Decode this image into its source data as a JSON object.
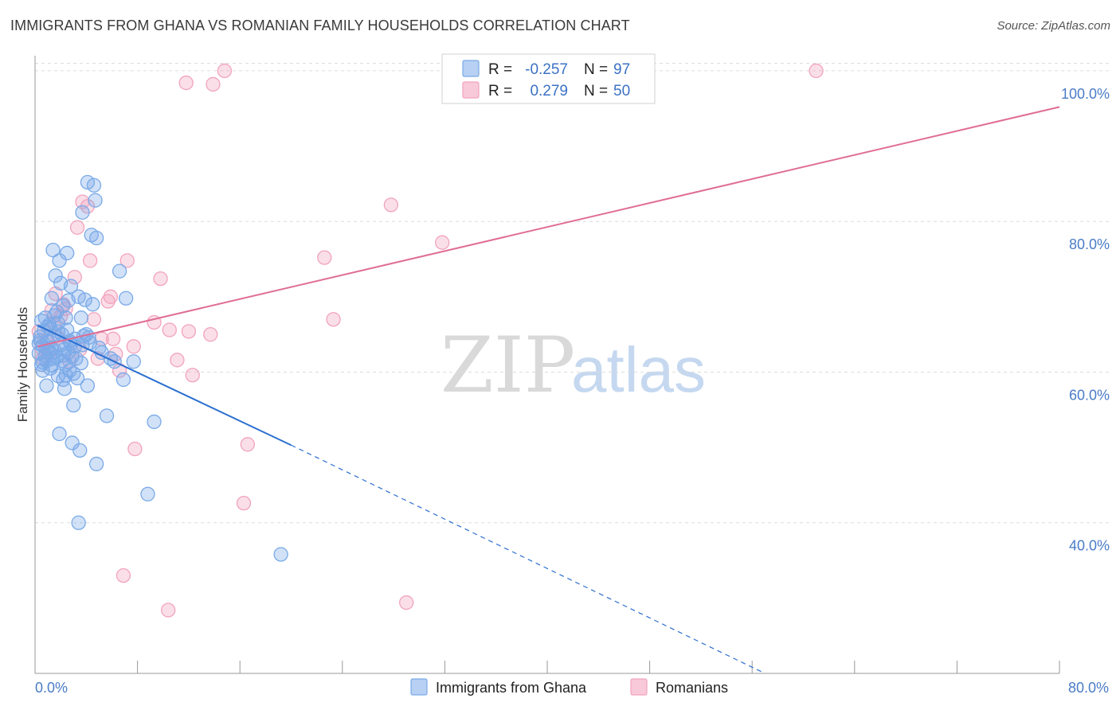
{
  "title": "IMMIGRANTS FROM GHANA VS ROMANIAN FAMILY HOUSEHOLDS CORRELATION CHART",
  "source": "Source: ZipAtlas.com",
  "watermark": {
    "zip": "ZIP",
    "atlas": "atlas"
  },
  "colors": {
    "blue": "#7aaae8",
    "blue_line": "#2b6fd0",
    "pink": "#f2a3bd",
    "pink_line": "#e06d95",
    "tick": "#4a7cc6",
    "grid": "#dcdcdc"
  },
  "legend": {
    "rows": [
      {
        "r_label": "R =",
        "r_value": "-0.257",
        "n_label": "N =",
        "n_value": "97"
      },
      {
        "r_label": "R =",
        "r_value": "0.279",
        "n_label": "N =",
        "n_value": "50"
      }
    ]
  },
  "bottom_legend": [
    "Immigrants from Ghana",
    "Romanians"
  ],
  "chart_data": {
    "type": "scatter",
    "xlabel": "",
    "ylabel": "Family Households",
    "xlim": [
      0,
      80
    ],
    "ylim": [
      20,
      102
    ],
    "x_tick_labels": [
      "0.0%",
      "80.0%"
    ],
    "y_ticks": [
      40,
      60,
      80,
      100
    ],
    "y_tick_labels": [
      "40.0%",
      "60.0%",
      "80.0%",
      "100.0%"
    ],
    "series": [
      {
        "name": "Immigrants from Ghana",
        "r": -0.257,
        "n": 97,
        "trend": {
          "x0": 0.2,
          "y0": 66.2,
          "x1": 20,
          "y1": 50.3,
          "dash_to_x": 57,
          "dash_to_y": 20
        },
        "points": [
          [
            0.3,
            62.5
          ],
          [
            0.4,
            64.2
          ],
          [
            0.5,
            61.0
          ],
          [
            0.5,
            66.8
          ],
          [
            0.6,
            60.2
          ],
          [
            0.6,
            63.5
          ],
          [
            0.7,
            65.5
          ],
          [
            0.8,
            62.2
          ],
          [
            0.8,
            67.2
          ],
          [
            0.9,
            58.2
          ],
          [
            0.9,
            61.5
          ],
          [
            1.0,
            64.0
          ],
          [
            1.0,
            66.0
          ],
          [
            1.1,
            62.8
          ],
          [
            1.2,
            60.5
          ],
          [
            1.2,
            65.8
          ],
          [
            1.3,
            69.8
          ],
          [
            1.3,
            63.2
          ],
          [
            1.4,
            76.2
          ],
          [
            1.4,
            61.8
          ],
          [
            1.5,
            67.5
          ],
          [
            1.5,
            64.8
          ],
          [
            1.6,
            72.8
          ],
          [
            1.7,
            62.0
          ],
          [
            1.7,
            68.0
          ],
          [
            1.8,
            59.5
          ],
          [
            1.8,
            66.5
          ],
          [
            1.9,
            51.8
          ],
          [
            1.9,
            74.8
          ],
          [
            2.0,
            63.6
          ],
          [
            2.0,
            71.8
          ],
          [
            2.1,
            61.5
          ],
          [
            2.1,
            65.0
          ],
          [
            2.2,
            59.0
          ],
          [
            2.2,
            68.8
          ],
          [
            2.3,
            57.8
          ],
          [
            2.3,
            63.0
          ],
          [
            2.4,
            61.0
          ],
          [
            2.4,
            67.2
          ],
          [
            2.5,
            65.6
          ],
          [
            2.5,
            75.8
          ],
          [
            2.6,
            69.5
          ],
          [
            2.6,
            62.6
          ],
          [
            2.7,
            60.2
          ],
          [
            2.8,
            63.8
          ],
          [
            2.8,
            71.4
          ],
          [
            2.9,
            50.6
          ],
          [
            3.0,
            55.6
          ],
          [
            3.0,
            59.8
          ],
          [
            3.1,
            64.4
          ],
          [
            3.2,
            61.8
          ],
          [
            3.3,
            59.2
          ],
          [
            3.4,
            70.0
          ],
          [
            3.5,
            49.6
          ],
          [
            3.6,
            67.2
          ],
          [
            3.7,
            63.6
          ],
          [
            3.8,
            64.8
          ],
          [
            3.9,
            69.6
          ],
          [
            4.0,
            65.0
          ],
          [
            4.1,
            58.2
          ],
          [
            4.1,
            85.2
          ],
          [
            4.3,
            63.9
          ],
          [
            4.4,
            78.2
          ],
          [
            4.5,
            69.0
          ],
          [
            4.6,
            84.8
          ],
          [
            4.7,
            82.8
          ],
          [
            4.8,
            77.8
          ],
          [
            3.6,
            61.2
          ],
          [
            3.4,
            40.0
          ],
          [
            4.8,
            47.8
          ],
          [
            5.0,
            63.2
          ],
          [
            5.2,
            62.6
          ],
          [
            5.6,
            54.2
          ],
          [
            5.9,
            61.8
          ],
          [
            6.2,
            61.4
          ],
          [
            6.6,
            73.4
          ],
          [
            6.9,
            59.0
          ],
          [
            7.1,
            69.8
          ],
          [
            7.7,
            61.4
          ],
          [
            8.8,
            43.8
          ],
          [
            9.3,
            53.4
          ],
          [
            19.2,
            35.8
          ],
          [
            2.2,
            62.2
          ],
          [
            1.1,
            66.3
          ],
          [
            0.9,
            63.1
          ],
          [
            0.6,
            61.3
          ],
          [
            0.4,
            64.7
          ],
          [
            2.7,
            64.1
          ],
          [
            3.1,
            63.4
          ],
          [
            1.6,
            62.7
          ],
          [
            1.3,
            60.9
          ],
          [
            2.4,
            59.6
          ],
          [
            3.7,
            81.2
          ],
          [
            4.2,
            64.6
          ],
          [
            0.3,
            63.8
          ],
          [
            1.8,
            65.4
          ],
          [
            2.9,
            62.1
          ]
        ]
      },
      {
        "name": "Romanians",
        "r": 0.279,
        "n": 50,
        "trend": {
          "x0": 0.2,
          "y0": 63.4,
          "x1": 80,
          "y1": 95.2
        },
        "points": [
          [
            0.3,
            65.4
          ],
          [
            0.5,
            63.2
          ],
          [
            0.6,
            61.8
          ],
          [
            0.9,
            64.2
          ],
          [
            1.1,
            62.6
          ],
          [
            1.3,
            68.2
          ],
          [
            1.5,
            66.4
          ],
          [
            1.6,
            70.4
          ],
          [
            1.8,
            64.6
          ],
          [
            2.0,
            67.4
          ],
          [
            2.2,
            69.0
          ],
          [
            2.4,
            68.4
          ],
          [
            2.7,
            61.4
          ],
          [
            3.1,
            72.6
          ],
          [
            3.3,
            79.2
          ],
          [
            3.5,
            63.0
          ],
          [
            3.7,
            82.6
          ],
          [
            4.1,
            82.0
          ],
          [
            4.3,
            74.8
          ],
          [
            4.6,
            67.0
          ],
          [
            4.9,
            61.8
          ],
          [
            5.2,
            64.4
          ],
          [
            5.7,
            69.4
          ],
          [
            5.9,
            70.0
          ],
          [
            6.1,
            64.4
          ],
          [
            6.3,
            62.4
          ],
          [
            6.6,
            60.2
          ],
          [
            6.9,
            33.0
          ],
          [
            7.2,
            74.8
          ],
          [
            7.7,
            63.4
          ],
          [
            7.8,
            49.8
          ],
          [
            9.3,
            66.6
          ],
          [
            9.8,
            72.4
          ],
          [
            10.5,
            65.6
          ],
          [
            11.1,
            61.6
          ],
          [
            11.8,
            98.4
          ],
          [
            12.0,
            65.4
          ],
          [
            12.3,
            59.6
          ],
          [
            13.7,
            65.0
          ],
          [
            13.9,
            98.2
          ],
          [
            14.8,
            100.0
          ],
          [
            16.3,
            42.6
          ],
          [
            16.6,
            50.4
          ],
          [
            22.6,
            75.2
          ],
          [
            23.3,
            67.0
          ],
          [
            27.8,
            82.2
          ],
          [
            29.0,
            29.4
          ],
          [
            31.8,
            77.2
          ],
          [
            61.0,
            100.0
          ],
          [
            10.4,
            28.4
          ]
        ]
      }
    ]
  }
}
